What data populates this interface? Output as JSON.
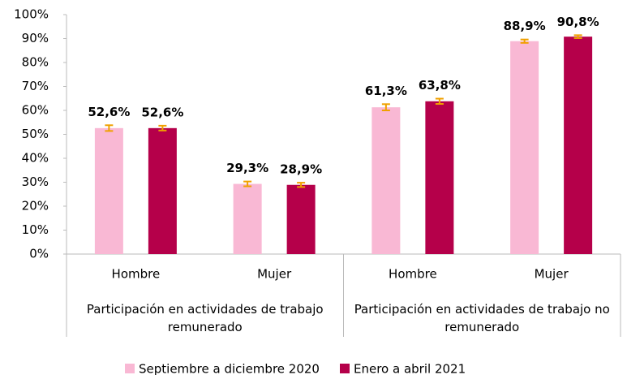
{
  "chart_data": {
    "type": "bar",
    "category_groups": [
      {
        "label": "Participación en actividades de trabajo remunerado",
        "categories": [
          "Hombre",
          "Mujer"
        ]
      },
      {
        "label": "Participación en actividades de trabajo no remunerado",
        "categories": [
          "Hombre",
          "Mujer"
        ]
      }
    ],
    "series": [
      {
        "name": "Septiembre a diciembre 2020",
        "color": "#f9b8d4",
        "values": [
          52.6,
          29.3,
          61.3,
          88.9
        ],
        "value_labels": [
          "52,6%",
          "29,3%",
          "61,3%",
          "88,9%"
        ],
        "errors": [
          1.2,
          1.0,
          1.3,
          0.7
        ]
      },
      {
        "name": "Enero a abril 2021",
        "color": "#b5004a",
        "values": [
          52.6,
          28.9,
          63.8,
          90.8
        ],
        "value_labels": [
          "52,6%",
          "28,9%",
          "63,8%",
          "90,8%"
        ],
        "errors": [
          1.0,
          0.9,
          1.1,
          0.6
        ]
      }
    ],
    "error_color": "#f0a000",
    "ylim": [
      0,
      100
    ],
    "yticks": [
      {
        "value": 0,
        "label": "0%"
      },
      {
        "value": 10,
        "label": "10%"
      },
      {
        "value": 20,
        "label": "20%"
      },
      {
        "value": 30,
        "label": "30%"
      },
      {
        "value": 40,
        "label": "40%"
      },
      {
        "value": 50,
        "label": "50%"
      },
      {
        "value": 60,
        "label": "60%"
      },
      {
        "value": 70,
        "label": "70%"
      },
      {
        "value": 80,
        "label": "80%"
      },
      {
        "value": 90,
        "label": "90%"
      },
      {
        "value": 100,
        "label": "100%"
      }
    ],
    "legend": "bottom"
  }
}
